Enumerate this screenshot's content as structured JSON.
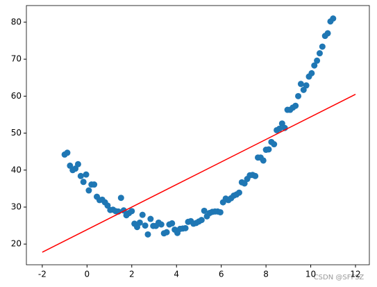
{
  "chart_data": {
    "type": "scatter",
    "xlim": [
      -2.71,
      12.62
    ],
    "ylim": [
      14.4,
      84.5
    ],
    "xticks": [
      -2,
      0,
      2,
      4,
      6,
      8,
      10,
      12
    ],
    "yticks": [
      20,
      30,
      40,
      50,
      60,
      70,
      80
    ],
    "watermark": "CSDN @SFFSZ",
    "series": [
      {
        "type": "scatter",
        "color": "#1f77b4",
        "x": [
          -1,
          -0.88,
          -0.76,
          -0.64,
          -0.52,
          -0.4,
          -0.28,
          -0.16,
          -0.04,
          0.08,
          0.2,
          0.32,
          0.44,
          0.56,
          0.68,
          0.8,
          0.92,
          1.04,
          1.16,
          1.28,
          1.4,
          1.52,
          1.64,
          1.76,
          1.88,
          2.0,
          2.12,
          2.24,
          2.36,
          2.48,
          2.6,
          2.72,
          2.84,
          2.96,
          3.08,
          3.2,
          3.32,
          3.44,
          3.56,
          3.68,
          3.8,
          3.92,
          4.04,
          4.16,
          4.28,
          4.4,
          4.52,
          4.64,
          4.76,
          4.88,
          5.0,
          5.12,
          5.24,
          5.36,
          5.48,
          5.6,
          5.72,
          5.84,
          5.96,
          6.08,
          6.2,
          6.32,
          6.44,
          6.56,
          6.68,
          6.8,
          6.92,
          7.04,
          7.16,
          7.28,
          7.4,
          7.52,
          7.64,
          7.76,
          7.88,
          8.0,
          8.12,
          8.24,
          8.36,
          8.48,
          8.6,
          8.72,
          8.84,
          8.96,
          9.08,
          9.2,
          9.32,
          9.44,
          9.56,
          9.68,
          9.8,
          9.92,
          10.04,
          10.16,
          10.28,
          10.4,
          10.52,
          10.64,
          10.76,
          10.88,
          11.0
        ],
        "values": [
          44.2,
          44.7,
          41.2,
          40,
          40.4,
          41.6,
          38.4,
          36.8,
          38.8,
          34.5,
          36.1,
          36.1,
          32.8,
          31.9,
          32.0,
          31.3,
          30.4,
          29.2,
          29.3,
          28.9,
          28.8,
          32.5,
          29.1,
          27.8,
          28.4,
          28.9,
          25.5,
          24.6,
          25.8,
          27.9,
          25.0,
          22.6,
          26.8,
          24.9,
          24.9,
          25.8,
          25.3,
          22.9,
          23.2,
          25.3,
          25.6,
          23.9,
          23.0,
          24.1,
          24.2,
          24.3,
          26.0,
          26.2,
          25.5,
          25.7,
          26.1,
          26.5,
          29.0,
          27.5,
          28.4,
          28.7,
          28.8,
          28.8,
          28.6,
          31.3,
          32.3,
          31.9,
          32.4,
          33.1,
          33.4,
          33.9,
          36.7,
          36.4,
          37.6,
          38.6,
          38.7,
          38.4,
          43.4,
          43.4,
          42.6,
          45.5,
          45.6,
          47.6,
          47.0,
          50.8,
          51.2,
          52.6,
          51.4,
          56.3,
          56.3,
          56.9,
          57.4,
          60.0,
          63.3,
          61.7,
          62.9,
          65.3,
          66.2,
          68.3,
          69.6,
          71.6,
          73.4,
          76.3,
          77.0,
          80.2,
          81.0
        ]
      },
      {
        "type": "line",
        "color": "#ff0000",
        "x": [
          -2,
          12
        ],
        "values": [
          17.8,
          60.5
        ]
      }
    ]
  }
}
